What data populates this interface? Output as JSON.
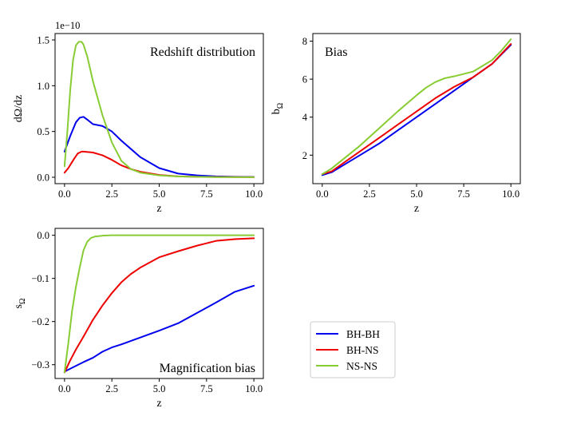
{
  "colors": {
    "BH-BH": "#0000ee",
    "BH-NS": "#ee0000",
    "NS-NS": "#88cc33"
  },
  "legend": {
    "placement": "lower-right",
    "entries": [
      "BH-BH",
      "BH-NS",
      "NS-NS"
    ]
  },
  "chart_data": [
    {
      "type": "line",
      "title": "Redshift distribution",
      "title_placement": "top-right",
      "xlabel": "z",
      "ylabel": "dΩ/dz",
      "offset_text": "1e−10",
      "xlim": [
        -0.5,
        10.5
      ],
      "ylim": [
        -0.07,
        1.57
      ],
      "xticks": [
        0,
        2.5,
        5,
        7.5,
        10
      ],
      "xtick_labels": [
        "0.0",
        "2.5",
        "5.0",
        "7.5",
        "10.0"
      ],
      "yticks": [
        0,
        0.5,
        1.0,
        1.5
      ],
      "ytick_labels": [
        "0.0",
        "0.5",
        "1.0",
        "1.5"
      ],
      "series": [
        {
          "name": "BH-BH",
          "x": [
            0,
            0.3,
            0.6,
            0.8,
            1.0,
            1.2,
            1.5,
            2.0,
            2.5,
            3.0,
            3.5,
            4.0,
            5.0,
            6.0,
            7.0,
            8.0,
            9.0,
            10.0
          ],
          "y": [
            0.28,
            0.45,
            0.6,
            0.65,
            0.66,
            0.63,
            0.58,
            0.56,
            0.5,
            0.4,
            0.31,
            0.22,
            0.1,
            0.04,
            0.02,
            0.01,
            0.005,
            0.003
          ]
        },
        {
          "name": "BH-NS",
          "x": [
            0,
            0.2,
            0.5,
            0.7,
            0.9,
            1.0,
            1.5,
            2.0,
            2.5,
            3.0,
            3.5,
            4.0,
            5.0,
            6.0,
            7.0,
            8.0,
            10.0
          ],
          "y": [
            0.05,
            0.1,
            0.2,
            0.26,
            0.28,
            0.28,
            0.27,
            0.24,
            0.19,
            0.13,
            0.09,
            0.06,
            0.025,
            0.01,
            0.005,
            0.003,
            0.001
          ]
        },
        {
          "name": "NS-NS",
          "x": [
            0,
            0.15,
            0.3,
            0.45,
            0.6,
            0.75,
            0.9,
            1.0,
            1.2,
            1.5,
            2.0,
            2.5,
            3.0,
            3.5,
            4.0,
            5.0,
            6.0,
            8.0,
            10.0
          ],
          "y": [
            0.12,
            0.5,
            0.95,
            1.28,
            1.44,
            1.48,
            1.48,
            1.45,
            1.32,
            1.05,
            0.68,
            0.38,
            0.18,
            0.09,
            0.05,
            0.02,
            0.008,
            0.002,
            0.001
          ]
        }
      ]
    },
    {
      "type": "line",
      "title": "Bias",
      "title_placement": "top-left",
      "xlabel": "z",
      "ylabel": "bΩ",
      "xlim": [
        -0.5,
        10.5
      ],
      "ylim": [
        0.5,
        8.4
      ],
      "xticks": [
        0,
        2.5,
        5,
        7.5,
        10
      ],
      "xtick_labels": [
        "0.0",
        "2.5",
        "5.0",
        "7.5",
        "10.0"
      ],
      "yticks": [
        2,
        4,
        6,
        8
      ],
      "ytick_labels": [
        "2",
        "4",
        "6",
        "8"
      ],
      "series": [
        {
          "name": "BH-BH",
          "x": [
            0,
            0.5,
            1,
            2,
            3,
            4,
            5,
            6,
            7,
            8,
            9,
            10
          ],
          "y": [
            0.95,
            1.1,
            1.4,
            2.0,
            2.6,
            3.3,
            4.0,
            4.7,
            5.4,
            6.1,
            6.8,
            7.8
          ]
        },
        {
          "name": "BH-NS",
          "x": [
            0,
            0.5,
            1,
            2,
            3,
            4,
            5,
            6,
            7,
            8,
            9,
            10
          ],
          "y": [
            1.0,
            1.15,
            1.5,
            2.2,
            2.9,
            3.6,
            4.3,
            5.0,
            5.6,
            6.1,
            6.8,
            7.85
          ]
        },
        {
          "name": "NS-NS",
          "x": [
            0,
            0.5,
            1,
            2,
            3,
            4,
            5,
            5.5,
            6,
            6.5,
            7,
            8,
            8.5,
            9,
            9.5,
            10
          ],
          "y": [
            1.0,
            1.3,
            1.7,
            2.5,
            3.4,
            4.3,
            5.15,
            5.55,
            5.85,
            6.05,
            6.15,
            6.4,
            6.7,
            7.0,
            7.5,
            8.1
          ]
        }
      ]
    },
    {
      "type": "line",
      "title": "Magnification bias",
      "title_placement": "bottom-right",
      "xlabel": "z",
      "ylabel": "sΩ",
      "xlim": [
        -0.5,
        10.5
      ],
      "ylim": [
        -0.332,
        0.016
      ],
      "xticks": [
        0,
        2.5,
        5,
        7.5,
        10
      ],
      "xtick_labels": [
        "0.0",
        "2.5",
        "5.0",
        "7.5",
        "10.0"
      ],
      "yticks": [
        -0.3,
        -0.2,
        -0.1,
        0.0
      ],
      "ytick_labels": [
        "−0.3",
        "−0.2",
        "−0.1",
        "0.0"
      ],
      "series": [
        {
          "name": "BH-BH",
          "x": [
            0,
            0.5,
            1,
            1.5,
            2,
            2.5,
            3,
            4,
            5,
            6,
            7,
            8,
            9,
            10
          ],
          "y": [
            -0.316,
            -0.305,
            -0.294,
            -0.284,
            -0.27,
            -0.26,
            -0.253,
            -0.237,
            -0.221,
            -0.204,
            -0.18,
            -0.156,
            -0.131,
            -0.117
          ]
        },
        {
          "name": "BH-NS",
          "x": [
            0,
            0.3,
            0.6,
            1,
            1.5,
            2,
            2.5,
            3,
            3.5,
            4,
            5,
            6,
            7,
            8,
            9,
            10
          ],
          "y": [
            -0.318,
            -0.29,
            -0.265,
            -0.235,
            -0.196,
            -0.163,
            -0.134,
            -0.109,
            -0.09,
            -0.075,
            -0.051,
            -0.037,
            -0.024,
            -0.013,
            -0.009,
            -0.007
          ]
        },
        {
          "name": "NS-NS",
          "x": [
            0,
            0.2,
            0.4,
            0.6,
            0.8,
            1.0,
            1.2,
            1.4,
            1.6,
            2,
            2.5,
            3,
            5,
            10
          ],
          "y": [
            -0.318,
            -0.25,
            -0.175,
            -0.12,
            -0.075,
            -0.035,
            -0.015,
            -0.006,
            -0.003,
            -0.001,
            0,
            0,
            0,
            0
          ]
        }
      ]
    }
  ]
}
